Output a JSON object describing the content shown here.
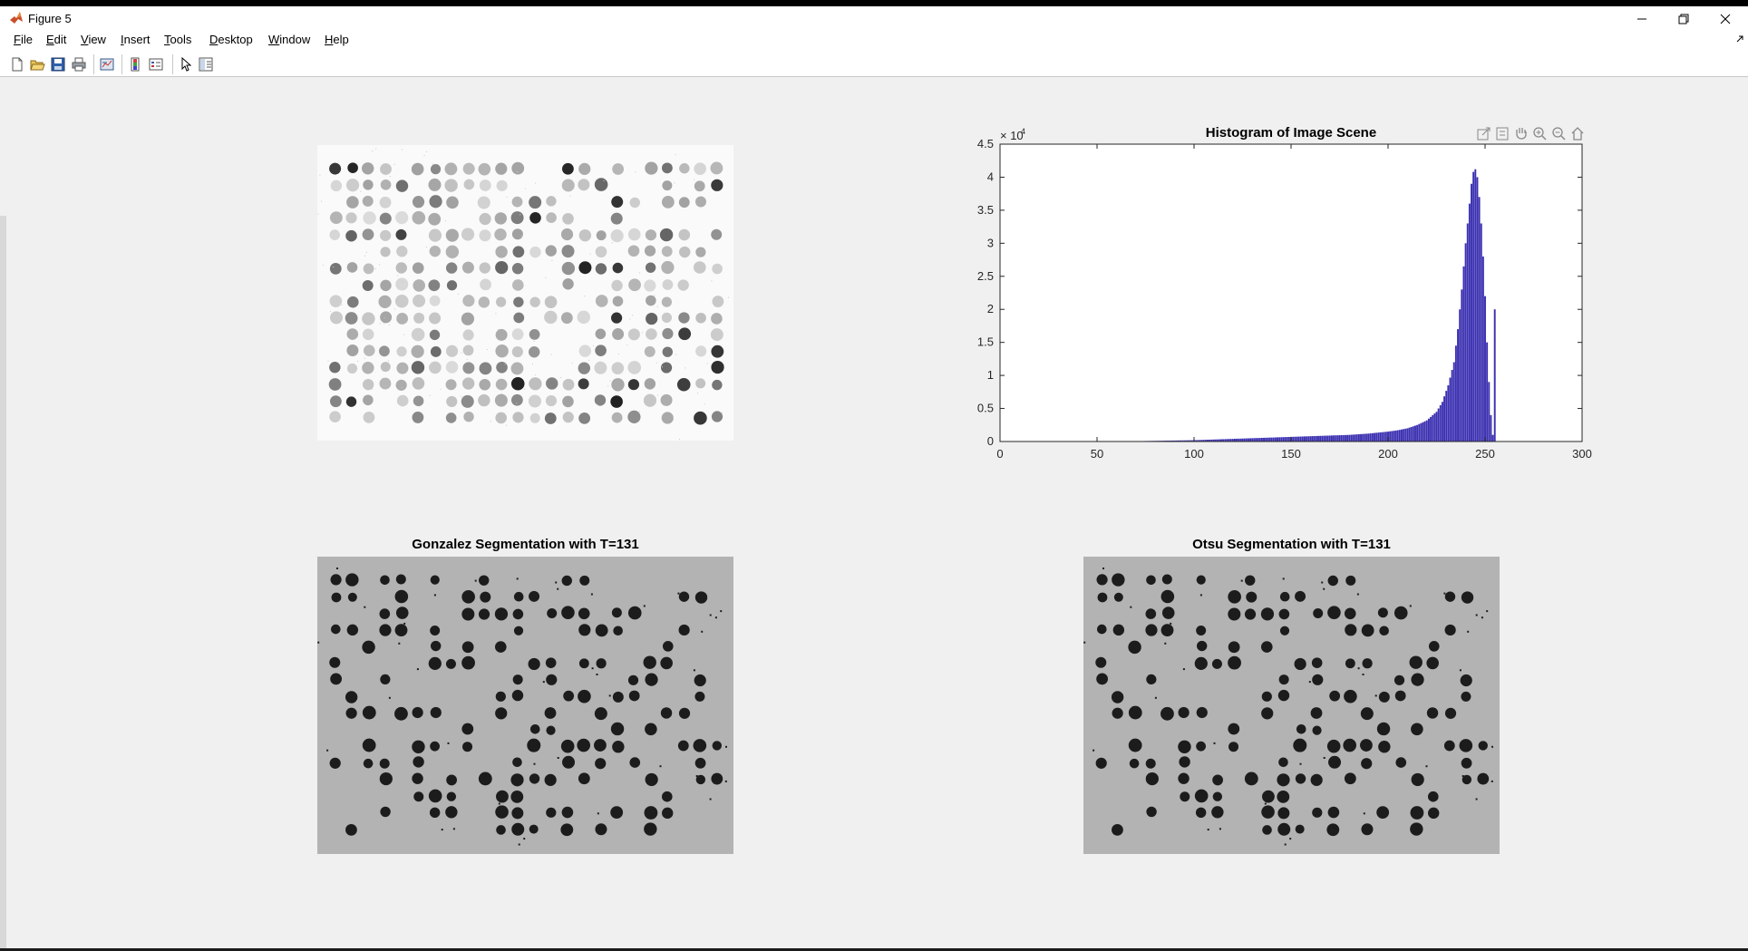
{
  "window": {
    "title": "Figure 5",
    "controls": [
      "minimize-icon",
      "restore-icon",
      "close-icon"
    ]
  },
  "menu": [
    {
      "key": "F",
      "rest": "ile"
    },
    {
      "key": "E",
      "rest": "dit"
    },
    {
      "key": "V",
      "rest": "iew"
    },
    {
      "key": "I",
      "rest": "nsert"
    },
    {
      "key": "T",
      "rest": "ools"
    },
    {
      "key": "D",
      "rest": "esktop"
    },
    {
      "key": "W",
      "rest": "indow"
    },
    {
      "key": "H",
      "rest": "elp"
    }
  ],
  "toolbar": {
    "icons": [
      "new-figure-icon",
      "open-file-icon",
      "save-icon",
      "print-icon",
      "link-plot-icon",
      "colorbar-icon",
      "legend-icon",
      "edit-plot-arrow-icon",
      "property-inspector-icon"
    ]
  },
  "axes_toolbar": {
    "icons": [
      "export-icon",
      "brush-icon",
      "pan-icon",
      "zoom-in-icon",
      "zoom-out-icon",
      "home-icon"
    ]
  },
  "panels": {
    "original": {
      "title": ""
    },
    "gonzalez": {
      "title": "Gonzalez Segmentation with T=131"
    },
    "otsu": {
      "title": "Otsu Segmentation with T=131"
    }
  },
  "colors": {
    "bar": "#3a2fb0",
    "segmentation_bg": "#b3b3b3",
    "blob": "#1c1c1c"
  },
  "chart_data": {
    "type": "bar",
    "title": "Histogram of Image Scene",
    "xlabel": "",
    "ylabel": "",
    "exponent_label": "× 10",
    "exponent_power": "4",
    "xlim": [
      0,
      300
    ],
    "ylim": [
      0,
      4.5
    ],
    "xticks": [
      "0",
      "50",
      "100",
      "150",
      "200",
      "250",
      "300"
    ],
    "yticks": [
      "0",
      "0.5",
      "1",
      "1.5",
      "2",
      "2.5",
      "3",
      "3.5",
      "4",
      "4.5"
    ],
    "grid": false,
    "series": [
      {
        "x": [
          0,
          20,
          40,
          60,
          80,
          100,
          110,
          120,
          130,
          140,
          150,
          160,
          170,
          180,
          190,
          200,
          205,
          210,
          215,
          220,
          225,
          228,
          231,
          234,
          236,
          238,
          240,
          242,
          243,
          244,
          245,
          246,
          247,
          248,
          249,
          250,
          251,
          252,
          253,
          254,
          255
        ],
        "values": [
          0.0,
          0.0,
          0.0,
          0.0,
          0.01,
          0.02,
          0.03,
          0.04,
          0.05,
          0.06,
          0.07,
          0.08,
          0.09,
          0.1,
          0.12,
          0.15,
          0.17,
          0.2,
          0.25,
          0.32,
          0.45,
          0.6,
          0.85,
          1.2,
          1.7,
          2.3,
          3.0,
          3.6,
          3.9,
          4.08,
          4.12,
          4.0,
          3.7,
          3.3,
          2.8,
          2.2,
          1.5,
          0.9,
          0.4,
          0.1,
          2.0
        ]
      }
    ]
  }
}
